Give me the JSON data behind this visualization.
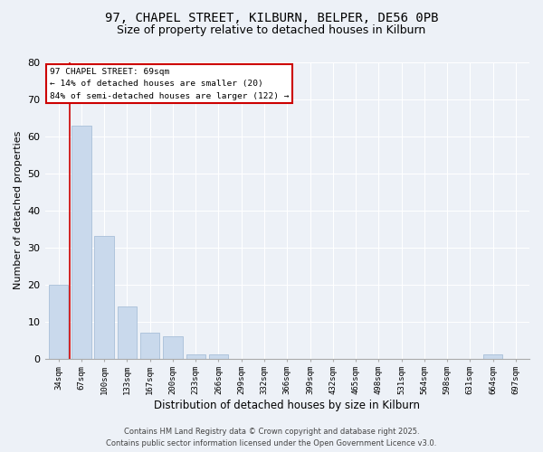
{
  "title1": "97, CHAPEL STREET, KILBURN, BELPER, DE56 0PB",
  "title2": "Size of property relative to detached houses in Kilburn",
  "xlabel": "Distribution of detached houses by size in Kilburn",
  "ylabel": "Number of detached properties",
  "categories": [
    "34sqm",
    "67sqm",
    "100sqm",
    "133sqm",
    "167sqm",
    "200sqm",
    "233sqm",
    "266sqm",
    "299sqm",
    "332sqm",
    "366sqm",
    "399sqm",
    "432sqm",
    "465sqm",
    "498sqm",
    "531sqm",
    "564sqm",
    "598sqm",
    "631sqm",
    "664sqm",
    "697sqm"
  ],
  "values": [
    20,
    63,
    33,
    14,
    7,
    6,
    1,
    1,
    0,
    0,
    0,
    0,
    0,
    0,
    0,
    0,
    0,
    0,
    0,
    1,
    0
  ],
  "bar_color": "#c9d9ec",
  "bar_edge_color": "#a8bfd8",
  "vline_x": 0.5,
  "vline_color": "#cc0000",
  "annotation_title": "97 CHAPEL STREET: 69sqm",
  "annotation_line2": "← 14% of detached houses are smaller (20)",
  "annotation_line3": "84% of semi-detached houses are larger (122) →",
  "annotation_box_edgecolor": "#cc0000",
  "ylim": [
    0,
    80
  ],
  "yticks": [
    0,
    10,
    20,
    30,
    40,
    50,
    60,
    70,
    80
  ],
  "footer1": "Contains HM Land Registry data © Crown copyright and database right 2025.",
  "footer2": "Contains public sector information licensed under the Open Government Licence v3.0.",
  "bg_color": "#edf1f7",
  "plot_bg_color": "#edf1f7",
  "grid_color": "#ffffff",
  "title1_fontsize": 10,
  "title2_fontsize": 9
}
